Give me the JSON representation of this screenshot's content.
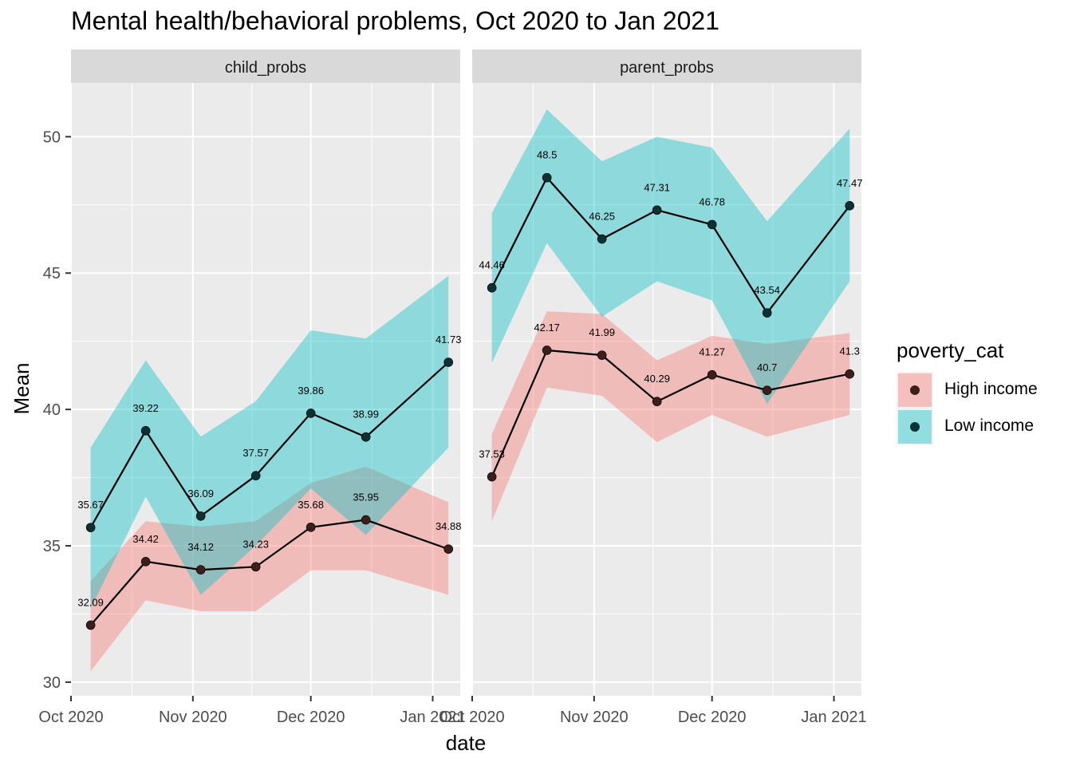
{
  "title": "Mental health/behavioral problems, Oct 2020 to Jan 2021",
  "legend": {
    "title": "poverty_cat",
    "items": [
      {
        "label": "High income",
        "fill": "#F8766D",
        "point": "#3c1e1c"
      },
      {
        "label": "Low income",
        "fill": "#00BFC4",
        "point": "#0c3133"
      }
    ]
  },
  "chart_data": {
    "type": "line",
    "title": "Mental health/behavioral problems, Oct 2020 to Jan 2021",
    "xlabel": "date",
    "ylabel": "Mean",
    "ylim": [
      29.5,
      52
    ],
    "yticks": [
      30,
      35,
      40,
      45,
      50
    ],
    "xlim": [
      "2020-10-01",
      "2021-01-08"
    ],
    "xticks": [
      {
        "date": "2020-10-01",
        "label": "Oct 2020"
      },
      {
        "date": "2020-11-01",
        "label": "Nov 2020"
      },
      {
        "date": "2020-12-01",
        "label": "Dec 2020"
      },
      {
        "date": "2021-01-01",
        "label": "Jan 2021"
      }
    ],
    "x": [
      "2020-10-06",
      "2020-10-20",
      "2020-11-03",
      "2020-11-17",
      "2020-12-01",
      "2020-12-15",
      "2021-01-05"
    ],
    "grid": true,
    "legend_position": "right",
    "panels": [
      {
        "name": "child_probs",
        "series": [
          {
            "name": "High income",
            "values": [
              32.09,
              34.42,
              34.12,
              34.23,
              35.68,
              35.95,
              34.88
            ],
            "lower": [
              30.4,
              33.0,
              32.6,
              32.6,
              34.1,
              34.1,
              33.2
            ],
            "upper": [
              33.7,
              35.9,
              35.7,
              35.9,
              37.3,
              37.9,
              36.6
            ]
          },
          {
            "name": "Low income",
            "values": [
              35.67,
              39.22,
              36.09,
              37.57,
              39.86,
              38.99,
              41.73
            ],
            "lower": [
              32.7,
              36.8,
              33.2,
              35.0,
              37.1,
              35.4,
              38.6
            ],
            "upper": [
              38.6,
              41.8,
              39.0,
              40.3,
              42.9,
              42.6,
              44.9
            ]
          }
        ]
      },
      {
        "name": "parent_probs",
        "series": [
          {
            "name": "High income",
            "values": [
              37.53,
              42.17,
              41.99,
              40.29,
              41.27,
              40.7,
              41.3
            ],
            "lower": [
              35.9,
              40.8,
              40.5,
              38.8,
              39.8,
              39.0,
              39.8
            ],
            "upper": [
              39.1,
              43.6,
              43.5,
              41.8,
              42.7,
              42.4,
              42.8
            ]
          },
          {
            "name": "Low income",
            "values": [
              44.46,
              48.5,
              46.25,
              47.31,
              46.78,
              43.54,
              47.47
            ],
            "lower": [
              41.7,
              46.1,
              43.4,
              44.7,
              44.0,
              40.2,
              44.7
            ],
            "upper": [
              47.2,
              51.0,
              49.1,
              50.0,
              49.6,
              46.9,
              50.3
            ]
          }
        ]
      }
    ]
  }
}
